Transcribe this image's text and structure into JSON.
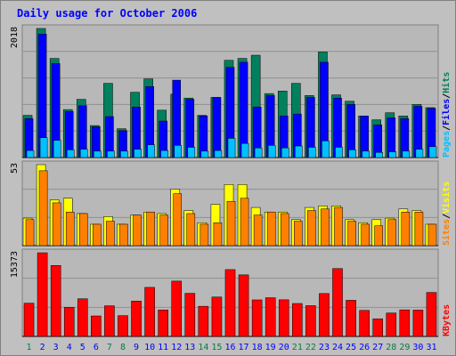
{
  "chart_data": {
    "type": "bar",
    "title": "Daily usage for October 2006",
    "colors": {
      "background": "#c0c0c0",
      "panel": "#b8b8b8",
      "title": "#0000ff",
      "hits": "#00805c",
      "files": "#0000ff",
      "pages": "#00c0ff",
      "visits": "#ffff00",
      "sites": "#ff8000",
      "kbytes": "#ff0000",
      "weekend_label": "#008040",
      "weekday_label": "#0000ff"
    },
    "days": [
      "1",
      "2",
      "3",
      "4",
      "5",
      "6",
      "7",
      "8",
      "9",
      "10",
      "11",
      "12",
      "13",
      "14",
      "15",
      "16",
      "17",
      "18",
      "19",
      "20",
      "21",
      "22",
      "23",
      "24",
      "25",
      "26",
      "27",
      "28",
      "29",
      "30",
      "31"
    ],
    "weekend_days": [
      "1",
      "7",
      "8",
      "14",
      "15",
      "21",
      "22",
      "28",
      "29"
    ],
    "panels": {
      "hits_files_pages": {
        "max_label": "2018",
        "ymax": 2018,
        "legend": [
          "Pages",
          "/",
          "Files",
          "/",
          "Hits"
        ],
        "series": [
          {
            "name": "Hits",
            "values": [
              660,
              2018,
              1550,
              750,
              910,
              500,
              1160,
              450,
              1020,
              1230,
              740,
              990,
              930,
              660,
              940,
              1520,
              1550,
              1600,
              1000,
              1040,
              1160,
              970,
              1650,
              980,
              880,
              650,
              590,
              700,
              650,
              830,
              780
            ]
          },
          {
            "name": "Files",
            "values": [
              610,
              1930,
              1470,
              720,
              810,
              480,
              640,
              420,
              790,
              1110,
              570,
              1210,
              910,
              650,
              940,
              1410,
              1490,
              790,
              970,
              650,
              680,
              940,
              1490,
              930,
              830,
              650,
              510,
              620,
              610,
              800,
              770
            ]
          },
          {
            "name": "Pages",
            "values": [
              110,
              310,
              270,
              120,
              130,
              100,
              100,
              100,
              130,
              200,
              110,
              190,
              160,
              100,
              110,
              300,
              220,
              150,
              190,
              150,
              180,
              160,
              260,
              160,
              120,
              100,
              80,
              90,
              100,
              130,
              170
            ]
          }
        ]
      },
      "visits_sites": {
        "max_label": "53",
        "ymax": 53,
        "legend": [
          "Sites",
          "/",
          "Visits"
        ],
        "series": [
          {
            "name": "Visits",
            "values": [
              18,
              53,
              30,
              31,
              21,
              14,
              19,
              14,
              20,
              22,
              21,
              37,
              23,
              15,
              27,
              40,
              40,
              25,
              22,
              22,
              17,
              25,
              26,
              26,
              17,
              15,
              17,
              18,
              24,
              23,
              14
            ]
          },
          {
            "name": "Sites",
            "values": [
              17,
              49,
              28,
              22,
              21,
              14,
              16,
              14,
              20,
              22,
              20,
              34,
              21,
              14,
              15,
              29,
              31,
              20,
              22,
              21,
              16,
              23,
              24,
              25,
              16,
              14,
              13,
              17,
              22,
              22,
              14
            ]
          }
        ]
      },
      "kbytes": {
        "max_label": "15373",
        "ymax": 15373,
        "legend": [
          "KBytes"
        ],
        "series": [
          {
            "name": "KBytes",
            "values": [
              6110,
              15373,
              13040,
              5360,
              6920,
              3760,
              5630,
              3820,
              6500,
              9010,
              4860,
              10160,
              7920,
              5540,
              7240,
              12280,
              11310,
              6710,
              7110,
              6730,
              6050,
              5650,
              7880,
              12470,
              6640,
              4780,
              3240,
              4300,
              4880,
              4840,
              8080
            ]
          }
        ]
      }
    }
  }
}
